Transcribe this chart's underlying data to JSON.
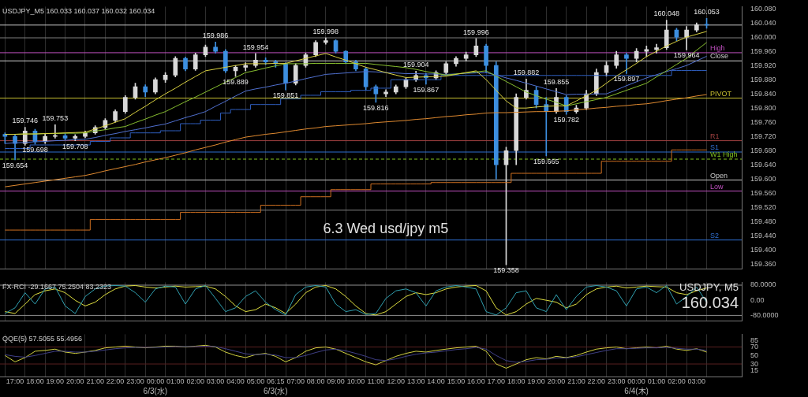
{
  "chart_data": [
    {
      "type": "candlestick",
      "title": "USDJPY_M5 160.033 160.037 160.032 160.034",
      "categories": [
        null,
        null,
        null,
        null,
        null,
        null,
        null,
        null,
        null,
        null,
        null,
        null,
        null,
        null,
        null,
        null,
        null,
        null,
        null,
        null,
        null,
        null,
        null,
        null,
        null,
        null,
        null,
        null,
        null,
        null,
        null,
        null,
        null,
        null,
        null,
        null,
        null,
        null,
        null,
        null,
        null,
        null,
        null,
        null,
        null,
        null,
        null,
        null,
        null,
        null,
        null,
        null,
        null,
        null,
        null,
        null,
        null,
        null,
        null,
        null,
        null,
        null,
        null,
        null,
        null,
        null,
        null,
        null,
        null,
        null,
        null
      ],
      "ohlc": [
        [
          159.726,
          159.73,
          159.7,
          159.72
        ],
        [
          159.72,
          159.725,
          159.654,
          159.7
        ],
        [
          159.7,
          159.746,
          159.695,
          159.735
        ],
        [
          159.735,
          159.74,
          159.698,
          159.705
        ],
        [
          159.705,
          159.728,
          159.7,
          159.72
        ],
        [
          159.72,
          159.753,
          159.715,
          159.722
        ],
        [
          159.722,
          159.728,
          159.71,
          159.715
        ],
        [
          159.715,
          159.725,
          159.708,
          159.72
        ],
        [
          159.72,
          159.735,
          159.716,
          159.73
        ],
        [
          159.73,
          159.75,
          159.726,
          159.745
        ],
        [
          159.745,
          159.77,
          159.74,
          159.765
        ],
        [
          159.765,
          159.795,
          159.76,
          159.79
        ],
        [
          159.79,
          159.835,
          159.785,
          159.83
        ],
        [
          159.83,
          159.87,
          159.825,
          159.86
        ],
        [
          159.86,
          159.866,
          159.832,
          159.845
        ],
        [
          159.845,
          159.885,
          159.84,
          159.88
        ],
        [
          159.88,
          159.9,
          159.872,
          159.893
        ],
        [
          159.893,
          159.945,
          159.888,
          159.94
        ],
        [
          159.94,
          159.944,
          159.905,
          159.91
        ],
        [
          159.91,
          159.955,
          159.906,
          159.95
        ],
        [
          159.95,
          159.978,
          159.945,
          159.972
        ],
        [
          159.972,
          159.986,
          159.955,
          159.96
        ],
        [
          159.96,
          159.965,
          159.9,
          159.905
        ],
        [
          159.905,
          159.92,
          159.889,
          159.915
        ],
        [
          159.915,
          159.928,
          159.905,
          159.92
        ],
        [
          159.92,
          159.954,
          159.915,
          159.935
        ],
        [
          159.935,
          159.942,
          159.922,
          159.93
        ],
        [
          159.93,
          159.935,
          159.915,
          159.925
        ],
        [
          159.925,
          159.928,
          159.851,
          159.87
        ],
        [
          159.87,
          159.925,
          159.865,
          159.92
        ],
        [
          159.92,
          159.955,
          159.915,
          159.95
        ],
        [
          159.95,
          159.99,
          159.945,
          159.985
        ],
        [
          159.985,
          159.998,
          159.98,
          159.99
        ],
        [
          159.99,
          159.993,
          159.955,
          159.96
        ],
        [
          159.96,
          159.962,
          159.925,
          159.93
        ],
        [
          159.93,
          159.935,
          159.905,
          159.91
        ],
        [
          159.91,
          159.915,
          159.85,
          159.86
        ],
        [
          159.86,
          159.865,
          159.816,
          159.84
        ],
        [
          159.84,
          159.852,
          159.832,
          159.845
        ],
        [
          159.845,
          159.865,
          159.84,
          159.86
        ],
        [
          159.86,
          159.885,
          159.855,
          159.88
        ],
        [
          159.88,
          159.904,
          159.875,
          159.892
        ],
        [
          159.892,
          159.898,
          159.867,
          159.885
        ],
        [
          159.885,
          159.905,
          159.88,
          159.9
        ],
        [
          159.9,
          159.93,
          159.895,
          159.925
        ],
        [
          159.925,
          159.945,
          159.918,
          159.94
        ],
        [
          159.94,
          159.958,
          159.932,
          159.95
        ],
        [
          159.95,
          159.996,
          159.945,
          159.975
        ],
        [
          159.975,
          159.98,
          159.9,
          159.92
        ],
        [
          159.92,
          159.93,
          159.6,
          159.64
        ],
        [
          159.64,
          159.69,
          159.358,
          159.68
        ],
        [
          159.68,
          159.84,
          159.64,
          159.83
        ],
        [
          159.83,
          159.882,
          159.825,
          159.85
        ],
        [
          159.85,
          159.86,
          159.8,
          159.81
        ],
        [
          159.81,
          159.83,
          159.665,
          159.79
        ],
        [
          159.79,
          159.855,
          159.785,
          159.83
        ],
        [
          159.83,
          159.835,
          159.782,
          159.79
        ],
        [
          159.79,
          159.808,
          159.785,
          159.8
        ],
        [
          159.8,
          159.85,
          159.795,
          159.84
        ],
        [
          159.84,
          159.91,
          159.835,
          159.9
        ],
        [
          159.9,
          159.93,
          159.89,
          159.92
        ],
        [
          159.92,
          159.96,
          159.912,
          159.95
        ],
        [
          159.95,
          159.955,
          159.897,
          159.94
        ],
        [
          159.94,
          159.968,
          159.93,
          159.96
        ],
        [
          159.96,
          159.975,
          159.945,
          159.965
        ],
        [
          159.965,
          159.98,
          159.955,
          159.97
        ],
        [
          159.97,
          160.048,
          159.965,
          160.02
        ],
        [
          160.02,
          160.025,
          159.99,
          160.0
        ],
        [
          160.0,
          160.03,
          159.964,
          160.02
        ],
        [
          160.02,
          160.04,
          160.015,
          160.035
        ],
        [
          160.035,
          160.053,
          160.025,
          160.034
        ]
      ],
      "colors": [
        "#3d8fe0",
        "#3d8fe0",
        "#d8d8d8",
        "#3d8fe0",
        "#d8d8d8",
        "#d8d8d8",
        "#3d8fe0",
        "#d8d8d8",
        "#d8d8d8",
        "#d8d8d8",
        "#d8d8d8",
        "#d8d8d8",
        "#d8d8d8",
        "#d8d8d8",
        "#3d8fe0",
        "#d8d8d8",
        "#d8d8d8",
        "#d8d8d8",
        "#3d8fe0",
        "#d8d8d8",
        "#d8d8d8",
        "#3d8fe0",
        "#3d8fe0",
        "#d8d8d8",
        "#d8d8d8",
        "#d8d8d8",
        "#3d8fe0",
        "#3d8fe0",
        "#3d8fe0",
        "#d8d8d8",
        "#d8d8d8",
        "#d8d8d8",
        "#d8d8d8",
        "#3d8fe0",
        "#3d8fe0",
        "#3d8fe0",
        "#3d8fe0",
        "#3d8fe0",
        "#d8d8d8",
        "#d8d8d8",
        "#d8d8d8",
        "#d8d8d8",
        "#3d8fe0",
        "#d8d8d8",
        "#d8d8d8",
        "#d8d8d8",
        "#d8d8d8",
        "#d8d8d8",
        "#3d8fe0",
        "#3d8fe0",
        "#d8d8d8",
        "#d8d8d8",
        "#d8d8d8",
        "#3d8fe0",
        "#3d8fe0",
        "#d8d8d8",
        "#3d8fe0",
        "#d8d8d8",
        "#d8d8d8",
        "#d8d8d8",
        "#d8d8d8",
        "#d8d8d8",
        "#3d8fe0",
        "#d8d8d8",
        "#d8d8d8",
        "#d8d8d8",
        "#d8d8d8",
        "#3d8fe0",
        "#d8d8d8",
        "#d8d8d8",
        "#3d8fe0"
      ],
      "value_labels": [
        null,
        "159.654",
        "159.746",
        "159.698",
        null,
        "159.753",
        null,
        "159.708",
        null,
        null,
        null,
        null,
        null,
        null,
        null,
        null,
        null,
        null,
        null,
        null,
        null,
        "159.986",
        null,
        "159.889",
        null,
        "159.954",
        null,
        null,
        "159.851",
        null,
        null,
        null,
        "159.998",
        null,
        null,
        null,
        null,
        "159.816",
        null,
        null,
        null,
        "159.904",
        "159.867",
        null,
        null,
        null,
        null,
        "159.996",
        null,
        null,
        "159.358",
        null,
        "159.882",
        null,
        "159.665",
        "159.855",
        "159.782",
        null,
        null,
        null,
        null,
        null,
        "159.897",
        null,
        null,
        null,
        "160.048",
        null,
        "159.964",
        null,
        "160.053"
      ],
      "series": [
        {
          "type": "line",
          "color": "#d8d040",
          "values": [
            159.726,
            159.726,
            159.727,
            159.727,
            159.728,
            159.729,
            159.73,
            159.731,
            159.732,
            159.741,
            159.75,
            159.76,
            159.77,
            159.788,
            159.805,
            159.823,
            159.84,
            159.856,
            159.873,
            159.889,
            159.905,
            159.91,
            159.915,
            159.92,
            159.925,
            159.925,
            159.925,
            159.926,
            159.926,
            159.933,
            159.94,
            159.947,
            159.954,
            159.944,
            159.935,
            159.925,
            159.915,
            159.908,
            159.9,
            159.893,
            159.886,
            159.887,
            159.888,
            159.889,
            159.89,
            159.895,
            159.9,
            159.905,
            159.88,
            159.85,
            159.82,
            159.8,
            159.8,
            159.803,
            159.805,
            159.806,
            159.806,
            159.82,
            159.835,
            159.85,
            159.87,
            159.89,
            159.908,
            159.926,
            159.945,
            159.96,
            159.975,
            159.988,
            160.0,
            160.008,
            160.016
          ]
        },
        {
          "type": "line",
          "color": "#88c030",
          "values": [
            159.726,
            159.726,
            159.727,
            159.727,
            159.728,
            159.728,
            159.729,
            159.729,
            159.73,
            159.735,
            159.739,
            159.744,
            159.748,
            159.759,
            159.769,
            159.78,
            159.79,
            159.804,
            159.818,
            159.831,
            159.845,
            159.859,
            159.873,
            159.886,
            159.9,
            159.906,
            159.913,
            159.919,
            159.925,
            159.925,
            159.925,
            159.926,
            159.926,
            159.926,
            159.926,
            159.926,
            159.926,
            159.923,
            159.92,
            159.917,
            159.914,
            159.909,
            159.903,
            159.898,
            159.893,
            159.896,
            159.899,
            159.902,
            159.905,
            159.89,
            159.875,
            159.86,
            159.845,
            159.835,
            159.825,
            159.816,
            159.806,
            159.812,
            159.818,
            159.824,
            159.83,
            159.84,
            159.85,
            159.86,
            159.87,
            159.888,
            159.905,
            159.923,
            159.94,
            159.963,
            159.985
          ]
        },
        {
          "type": "line",
          "color": "#5070d0",
          "values": [
            159.7,
            159.702,
            159.703,
            159.705,
            159.706,
            159.708,
            159.709,
            159.711,
            159.712,
            159.717,
            159.723,
            159.728,
            159.734,
            159.739,
            159.744,
            159.75,
            159.755,
            159.764,
            159.773,
            159.781,
            159.79,
            159.805,
            159.819,
            159.834,
            159.848,
            159.854,
            159.859,
            159.865,
            159.87,
            159.876,
            159.883,
            159.889,
            159.895,
            159.897,
            159.899,
            159.901,
            159.903,
            159.902,
            159.9,
            159.899,
            159.897,
            159.897,
            159.896,
            159.896,
            159.895,
            159.896,
            159.898,
            159.899,
            159.9,
            159.893,
            159.885,
            159.878,
            159.87,
            159.862,
            159.854,
            159.846,
            159.838,
            159.839,
            159.839,
            159.84,
            159.84,
            159.851,
            159.863,
            159.874,
            159.885,
            159.894,
            159.903,
            159.911,
            159.92,
            159.933,
            159.946
          ]
        },
        {
          "type": "line",
          "color": "#e08a30",
          "values": [
            159.578,
            159.582,
            159.586,
            159.59,
            159.594,
            159.598,
            159.602,
            159.606,
            159.61,
            159.616,
            159.623,
            159.629,
            159.635,
            159.641,
            159.648,
            159.654,
            159.66,
            159.667,
            159.674,
            159.682,
            159.689,
            159.696,
            159.704,
            159.711,
            159.718,
            159.722,
            159.726,
            159.729,
            159.733,
            159.737,
            159.741,
            159.744,
            159.748,
            159.75,
            159.752,
            159.754,
            159.756,
            159.759,
            159.761,
            159.763,
            159.765,
            159.768,
            159.77,
            159.773,
            159.776,
            159.778,
            159.781,
            159.783,
            159.786,
            159.787,
            159.787,
            159.788,
            159.789,
            159.79,
            159.79,
            159.791,
            159.792,
            159.795,
            159.797,
            159.8,
            159.802,
            159.805,
            159.807,
            159.81,
            159.812,
            159.816,
            159.821,
            159.825,
            159.829,
            159.834,
            159.838
          ]
        },
        {
          "type": "step",
          "color": "#2f5fc0",
          "values": [
            159.686,
            159.686,
            159.686,
            159.696,
            159.696,
            159.696,
            159.696,
            159.696,
            159.696,
            159.706,
            159.706,
            159.716,
            159.716,
            159.73,
            159.73,
            159.73,
            159.736,
            159.736,
            159.756,
            159.756,
            159.766,
            159.766,
            159.786,
            159.796,
            159.796,
            159.81,
            159.81,
            159.81,
            159.826,
            159.826,
            159.836,
            159.836,
            159.846,
            159.846,
            159.846,
            159.85,
            159.85,
            159.856,
            159.856,
            159.88,
            159.88,
            159.88,
            159.88,
            159.88,
            159.892,
            159.892,
            159.892,
            159.892,
            159.892,
            159.892,
            159.892,
            159.892,
            159.892,
            159.892,
            159.892,
            159.892,
            159.892,
            159.892,
            159.892,
            159.892,
            159.892,
            159.892,
            159.892,
            159.892,
            159.892,
            159.892,
            159.892,
            159.906,
            159.906,
            159.906,
            159.906
          ]
        },
        {
          "type": "step",
          "color": "#d07020",
          "values": [
            159.456,
            159.456,
            159.456,
            159.456,
            159.456,
            159.456,
            159.456,
            159.456,
            159.456,
            159.486,
            159.486,
            159.486,
            159.486,
            159.486,
            159.486,
            159.486,
            159.486,
            159.486,
            159.506,
            159.506,
            159.506,
            159.506,
            159.506,
            159.506,
            159.506,
            159.506,
            159.526,
            159.526,
            159.526,
            159.526,
            159.55,
            159.55,
            159.55,
            159.57,
            159.57,
            159.57,
            159.57,
            159.586,
            159.586,
            159.586,
            159.586,
            159.586,
            159.586,
            159.59,
            159.59,
            159.59,
            159.59,
            159.59,
            159.59,
            159.59,
            159.59,
            159.616,
            159.616,
            159.616,
            159.616,
            159.616,
            159.616,
            159.616,
            159.616,
            159.616,
            159.65,
            159.65,
            159.65,
            159.65,
            159.65,
            159.65,
            159.65,
            159.682,
            159.682,
            159.682,
            159.682
          ]
        }
      ],
      "ylim": [
        159.346,
        160.086
      ],
      "yticks": [
        {
          "value": 159.36,
          "label": "159.360"
        },
        {
          "value": 159.4,
          "label": "159.400"
        },
        {
          "value": 159.44,
          "label": "159.440"
        },
        {
          "value": 159.48,
          "label": "159.480"
        },
        {
          "value": 159.52,
          "label": "159.520"
        },
        {
          "value": 159.56,
          "label": "159.560"
        },
        {
          "value": 159.6,
          "label": "159.600"
        },
        {
          "value": 159.64,
          "label": "159.640"
        },
        {
          "value": 159.68,
          "label": "159.680"
        },
        {
          "value": 159.72,
          "label": "159.720"
        },
        {
          "value": 159.76,
          "label": "159.760"
        },
        {
          "value": 159.8,
          "label": "159.800"
        },
        {
          "value": 159.84,
          "label": "159.840"
        },
        {
          "value": 159.88,
          "label": "159.880"
        },
        {
          "value": 159.92,
          "label": "159.920"
        },
        {
          "value": 159.96,
          "label": "159.960"
        },
        {
          "value": 160.0,
          "label": "160.000"
        },
        {
          "value": 160.04,
          "label": "160.040"
        },
        {
          "value": 160.08,
          "label": "160.080"
        }
      ],
      "ref_lines": [
        {
          "axis": "y",
          "value": 160.034,
          "color": "#c8c8c8"
        },
        {
          "axis": "y",
          "value": 159.998,
          "color": "#808080"
        },
        {
          "axis": "y",
          "value": 159.956,
          "label": "High",
          "color": "#c050c0"
        },
        {
          "axis": "y",
          "value": 159.933,
          "label": "Close",
          "color": "#d0d0d0"
        },
        {
          "axis": "y",
          "value": 159.828,
          "label": "PIVOT",
          "color": "#c8c030"
        },
        {
          "axis": "y",
          "value": 159.708,
          "label": "R1",
          "color": "#a04040"
        },
        {
          "axis": "y",
          "value": 159.676,
          "label": "S1",
          "color": "#2f6fd0"
        },
        {
          "axis": "y",
          "value": 159.656,
          "label": "W1 High",
          "color": "#80c020",
          "line_style": "dashed"
        },
        {
          "axis": "y",
          "value": 159.597,
          "label": "Open",
          "color": "#c8c8c8"
        },
        {
          "axis": "y",
          "value": 159.566,
          "label": "Low",
          "color": "#c050c0"
        },
        {
          "axis": "y",
          "value": 159.512,
          "color": "#808080"
        },
        {
          "axis": "y",
          "value": 159.428,
          "label": "S2",
          "color": "#2f6fd0"
        }
      ],
      "annotations": [
        "6.3 Wed usd/jpy m5"
      ],
      "grid": "x",
      "tick_labels": "y"
    },
    {
      "type": "line",
      "title": "FX-RCI -29.1667 75.2504 83.2323",
      "categories": [
        null,
        null,
        null,
        null,
        null,
        null,
        null,
        null,
        null,
        null,
        null,
        null,
        null,
        null,
        null,
        null,
        null,
        null,
        null,
        null,
        null,
        null,
        null,
        null,
        null,
        null,
        null,
        null,
        null,
        null,
        null,
        null,
        null,
        null,
        null,
        null,
        null,
        null,
        null,
        null,
        null,
        null,
        null,
        null,
        null,
        null,
        null,
        null,
        null,
        null,
        null,
        null,
        null,
        null,
        null,
        null,
        null,
        null,
        null,
        null,
        null,
        null,
        null,
        null,
        null,
        null,
        null,
        null,
        null,
        null,
        null
      ],
      "series": [
        {
          "color": "#30a0b0",
          "values": [
            -70,
            -40,
            40,
            -20,
            60,
            70,
            -30,
            -70,
            20,
            60,
            75,
            78,
            75,
            40,
            -10,
            60,
            75,
            70,
            -20,
            60,
            78,
            10,
            -60,
            -40,
            20,
            50,
            -10,
            -50,
            -78,
            30,
            70,
            78,
            70,
            -20,
            -60,
            -50,
            -75,
            -70,
            10,
            50,
            60,
            40,
            -30,
            50,
            70,
            78,
            70,
            60,
            -60,
            -78,
            -40,
            40,
            50,
            -40,
            -60,
            30,
            -50,
            20,
            70,
            78,
            70,
            50,
            -30,
            60,
            70,
            40,
            78,
            -20,
            20,
            70,
            -10
          ]
        },
        {
          "color": "#e0e040",
          "values": [
            -60,
            -70,
            -20,
            30,
            50,
            60,
            40,
            0,
            -30,
            -10,
            30,
            60,
            75,
            78,
            70,
            65,
            70,
            75,
            70,
            72,
            75,
            60,
            20,
            -30,
            -60,
            -50,
            -20,
            -40,
            -70,
            -20,
            40,
            70,
            78,
            60,
            20,
            -30,
            -70,
            -78,
            -60,
            -20,
            20,
            40,
            30,
            40,
            60,
            70,
            75,
            78,
            50,
            -40,
            -78,
            -60,
            -20,
            10,
            0,
            -10,
            -40,
            -20,
            30,
            60,
            70,
            75,
            65,
            70,
            75,
            72,
            70,
            40,
            30,
            50,
            65
          ]
        }
      ],
      "ylim": [
        -110,
        95
      ],
      "yticks": [
        {
          "value": -80,
          "label": "-80.0000"
        },
        {
          "value": 0,
          "label": "0.00"
        },
        {
          "value": 80,
          "label": "80.0000"
        }
      ],
      "ref_lines": [
        {
          "axis": "y",
          "value": 80,
          "color": "#909090"
        },
        {
          "axis": "y",
          "value": -80,
          "color": "#909090"
        }
      ],
      "annotations": [
        "USDJPY, M5",
        "160.034"
      ],
      "grid": "x",
      "tick_labels": "y"
    },
    {
      "type": "line",
      "title": "QQE(5) 57.5055 55.4956",
      "categories": [
        null,
        "17:00",
        null,
        "18:00",
        null,
        "19:00",
        null,
        "20:00",
        null,
        "21:00",
        null,
        "22:00",
        null,
        "23:00",
        null,
        "00:00",
        null,
        "01:00",
        null,
        "02:00",
        null,
        "03:00",
        null,
        "04:00",
        null,
        "05:00",
        null,
        "06:15",
        null,
        "07:00",
        null,
        "08:00",
        null,
        "09:00",
        null,
        "10:00",
        null,
        "11:00",
        null,
        "12:00",
        null,
        "13:00",
        null,
        "14:00",
        null,
        "15:00",
        null,
        "16:00",
        null,
        "17:00",
        null,
        "18:00",
        null,
        "19:00",
        null,
        "20:00",
        null,
        "21:00",
        null,
        "22:00",
        null,
        "23:00",
        null,
        "00:00",
        null,
        "01:00",
        null,
        "02:00",
        null,
        "03:00",
        null
      ],
      "series": [
        {
          "color": "#404088",
          "values": [
            52,
            48,
            46,
            50,
            55,
            60,
            60,
            58,
            58,
            60,
            63,
            66,
            68,
            69,
            69,
            69,
            70,
            71,
            71,
            71,
            72,
            71,
            66,
            60,
            54,
            52,
            53,
            51,
            45,
            45,
            50,
            57,
            63,
            65,
            61,
            55,
            48,
            40,
            38,
            42,
            48,
            53,
            56,
            58,
            61,
            64,
            66,
            69,
            65,
            50,
            38,
            34,
            36,
            40,
            41,
            44,
            44,
            47,
            52,
            57,
            62,
            66,
            66,
            67,
            68,
            68,
            69,
            67,
            65,
            65,
            62
          ]
        },
        {
          "color": "#d0d040",
          "values": [
            50,
            35,
            45,
            60,
            62,
            65,
            58,
            55,
            58,
            62,
            68,
            70,
            72,
            70,
            68,
            70,
            72,
            72,
            70,
            72,
            74,
            70,
            58,
            50,
            45,
            52,
            55,
            48,
            35,
            45,
            60,
            68,
            70,
            65,
            55,
            45,
            35,
            28,
            38,
            48,
            55,
            60,
            58,
            62,
            65,
            68,
            70,
            72,
            60,
            30,
            20,
            30,
            40,
            45,
            42,
            48,
            45,
            50,
            58,
            65,
            68,
            70,
            66,
            68,
            70,
            68,
            72,
            65,
            62,
            66,
            58
          ]
        }
      ],
      "ylim": [
        0,
        100
      ],
      "yticks": [
        15,
        30,
        50,
        70,
        85
      ],
      "annotations": [
        "6/3(水)",
        "6/3(水)",
        "6/4(木)"
      ],
      "ref_lines": [
        {
          "axis": "y",
          "value": 70,
          "color": "#5a2020"
        },
        {
          "axis": "y",
          "value": 30,
          "color": "#5a2020"
        }
      ],
      "grid": "x"
    }
  ]
}
